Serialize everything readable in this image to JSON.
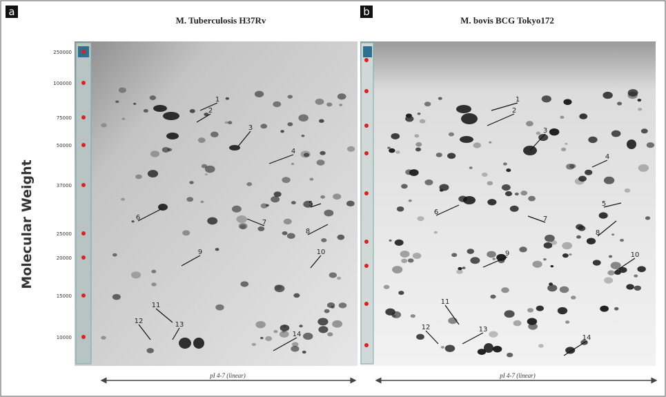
{
  "y_axis_label": "Molecular Weight",
  "marker_labels": [
    "250000",
    "100000",
    "75000",
    "50000",
    "37000",
    "25000",
    "20000",
    "15000",
    "10000"
  ],
  "panels": [
    {
      "label": "a",
      "title": "M. Tuberculosis H37Rv",
      "x_axis_label": "pI 4-7 (linear)",
      "spot_labels": [
        "1",
        "2",
        "3",
        "4",
        "5",
        "6",
        "7",
        "8",
        "9",
        "10",
        "11",
        "12",
        "13",
        "14"
      ]
    },
    {
      "label": "b",
      "title": "M. bovis BCG Tokyo172",
      "x_axis_label": "pI 4-7 (linear)",
      "spot_labels": [
        "1",
        "2",
        "3",
        "4",
        "5",
        "6",
        "7",
        "8",
        "9",
        "10",
        "11",
        "12",
        "13",
        "14"
      ]
    }
  ]
}
